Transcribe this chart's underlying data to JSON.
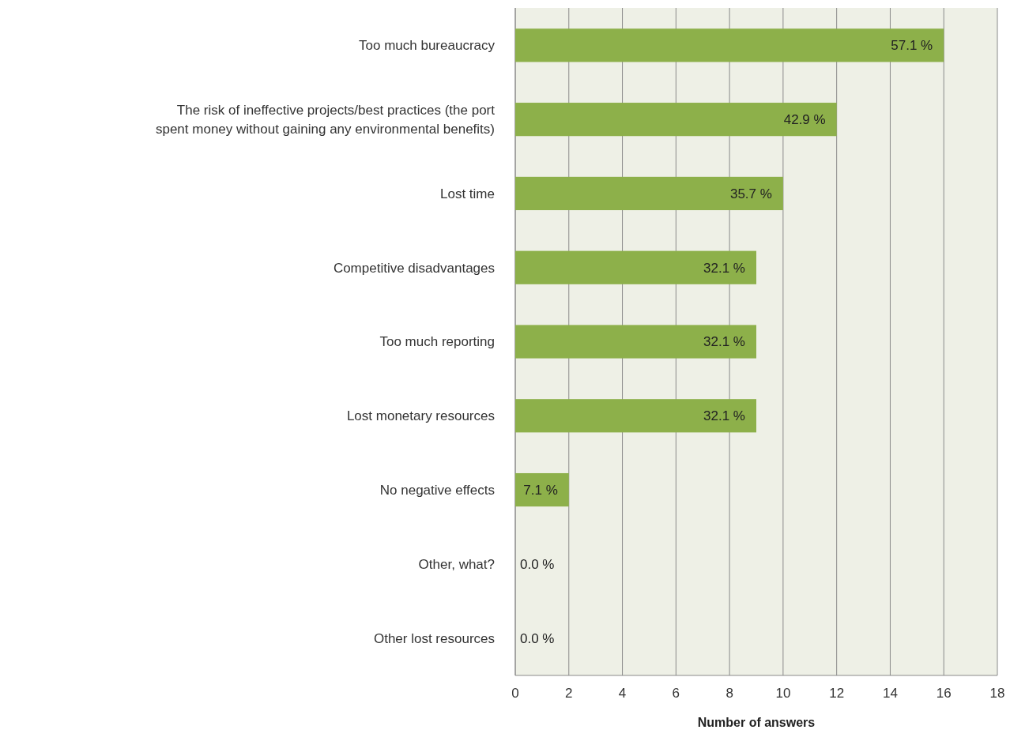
{
  "chart_data": {
    "type": "bar",
    "orientation": "horizontal",
    "xlabel": "Number of answers",
    "categories": [
      "Too much bureaucracy",
      "The risk of ineffective projects/best practices (the port spent money without gaining any environmental benefits)",
      "Lost time",
      "Competitive disadvantages",
      "Too much reporting",
      "Lost monetary resources",
      "No negative effects",
      "Other, what?",
      "Other lost resources"
    ],
    "values": [
      16,
      12,
      10,
      9,
      9,
      9,
      2,
      0,
      0
    ],
    "annotations": [
      {
        "text": "57.1 %",
        "x": 16,
        "y": "Too much bureaucracy"
      },
      {
        "text": "42.9 %",
        "x": 12,
        "y": "The risk of ineffective projects/best practices (the port spent money without gaining any environmental benefits)"
      },
      {
        "text": "35.7 %",
        "x": 10,
        "y": "Lost time"
      },
      {
        "text": "32.1 %",
        "x": 9,
        "y": "Competitive disadvantages"
      },
      {
        "text": "32.1 %",
        "x": 9,
        "y": "Too much reporting"
      },
      {
        "text": "32.1 %",
        "x": 9,
        "y": "Lost monetary resources"
      },
      {
        "text": "7.1 %",
        "x": 2,
        "y": "No negative effects"
      },
      {
        "text": "0.0 %",
        "x": 0,
        "y": "Other, what?"
      },
      {
        "text": "0.0 %",
        "x": 0,
        "y": "Other lost resources"
      }
    ],
    "color": "#8db04a",
    "xlim": [
      0,
      18
    ],
    "xticks": [
      0,
      2,
      4,
      6,
      8,
      10,
      12,
      14,
      16,
      18
    ],
    "grid": "x"
  }
}
